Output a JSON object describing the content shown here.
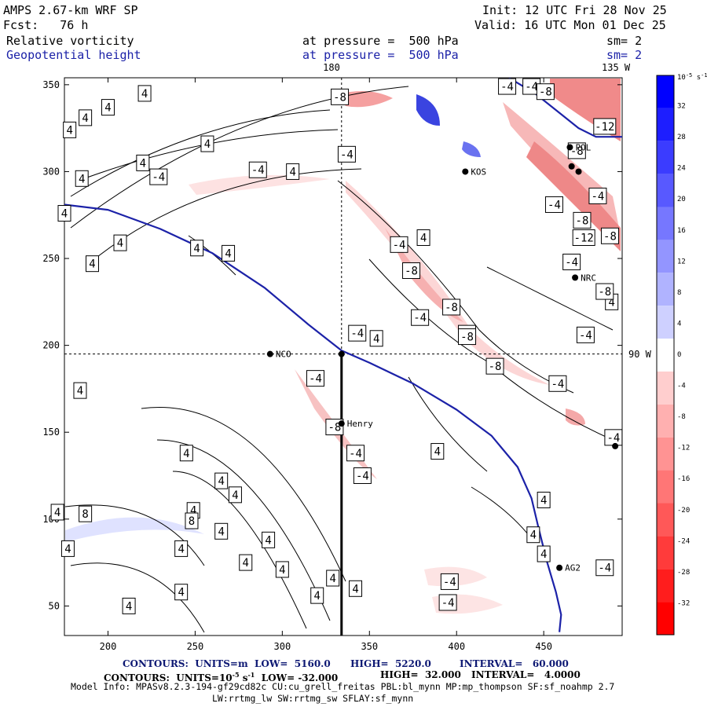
{
  "header": {
    "model": "AMPS 2.67-km WRF SP",
    "init": "Init: 12 UTC Fri 28 Nov 25",
    "fcst": "Fcst:   76 h",
    "valid": "Valid: 16 UTC Mon 01 Dec 25",
    "field1": "Relative vorticity",
    "field1_level": "at pressure =  500 hPa",
    "field1_sm": "sm= 2",
    "field2": "Geopotential height",
    "field2_level": "at pressure =  500 hPa",
    "field2_sm": "sm= 2",
    "lon_180": "180",
    "lon_135": "135 W",
    "lon_90": "90 W"
  },
  "colors": {
    "contour_blue": "#1c22a8",
    "pos_max": "#0000ff",
    "neg_max": "#ff0000"
  },
  "chart_data": {
    "type": "contour",
    "title": "Relative vorticity / Geopotential height at 500 hPa",
    "xlim": [
      175,
      495
    ],
    "ylim": [
      33,
      354
    ],
    "x_ticks": [
      200,
      250,
      300,
      350,
      400,
      450
    ],
    "y_ticks": [
      50,
      100,
      150,
      200,
      250,
      300,
      350
    ],
    "grid_crosshair": {
      "x": 334,
      "y": 195
    },
    "cross_section_x": 334,
    "colorbar": {
      "unit": "10⁻⁵ s⁻¹",
      "unit_label": "10",
      "unit_exp": "-5",
      "unit_tail": " s",
      "unit_exp2": "-1",
      "levels": [
        32,
        28,
        24,
        20,
        16,
        12,
        8,
        4,
        0,
        -4,
        -8,
        -12,
        -16,
        -20,
        -24,
        -28,
        -32
      ],
      "level_labels": [
        "32",
        "28",
        "24",
        "20",
        "16",
        "12",
        "8",
        "4",
        "0",
        "-4",
        "-8",
        "-12",
        "-16",
        "-20",
        "-24",
        "-28",
        "-32"
      ]
    },
    "stations": [
      {
        "name": "NCO",
        "x": 293,
        "y": 195
      },
      {
        "name": "Henry",
        "x": 334,
        "y": 155
      },
      {
        "name": "AG2",
        "x": 459,
        "y": 72
      },
      {
        "name": "NRC",
        "x": 468,
        "y": 239
      },
      {
        "name": "POL",
        "x": 465,
        "y": 314
      },
      {
        "name": "KOS",
        "x": 405,
        "y": 300
      },
      {
        "name": "",
        "x": 334,
        "y": 195
      },
      {
        "name": "",
        "x": 491,
        "y": 142
      },
      {
        "name": "",
        "x": 466,
        "y": 303
      },
      {
        "name": "",
        "x": 470,
        "y": 300
      }
    ],
    "height_contour": [
      [
        175,
        281
      ],
      [
        200,
        278
      ],
      [
        230,
        267
      ],
      [
        260,
        253
      ],
      [
        290,
        233
      ],
      [
        315,
        212
      ],
      [
        334,
        197
      ],
      [
        350,
        190
      ],
      [
        375,
        178
      ],
      [
        400,
        163
      ],
      [
        420,
        148
      ],
      [
        435,
        130
      ],
      [
        443,
        112
      ],
      [
        447,
        95
      ],
      [
        452,
        75
      ],
      [
        457,
        58
      ],
      [
        460,
        45
      ],
      [
        459,
        35
      ]
    ],
    "height_contour_2": [
      [
        430,
        354
      ],
      [
        445,
        345
      ],
      [
        460,
        333
      ],
      [
        470,
        325
      ],
      [
        480,
        320
      ],
      [
        495,
        320
      ]
    ],
    "contour_labels": [
      {
        "t": "4",
        "x": 221,
        "y": 345
      },
      {
        "t": "4",
        "x": 200,
        "y": 337
      },
      {
        "t": "4",
        "x": 178,
        "y": 324
      },
      {
        "t": "4",
        "x": 187,
        "y": 331
      },
      {
        "t": "4",
        "x": 220,
        "y": 305
      },
      {
        "t": "4",
        "x": 185,
        "y": 296
      },
      {
        "t": "4",
        "x": 257,
        "y": 316
      },
      {
        "t": "4",
        "x": 306,
        "y": 300
      },
      {
        "t": "4",
        "x": 251,
        "y": 256
      },
      {
        "t": "4",
        "x": 175,
        "y": 276
      },
      {
        "t": "4",
        "x": 207,
        "y": 259
      },
      {
        "t": "4",
        "x": 269,
        "y": 253
      },
      {
        "t": "4",
        "x": 191,
        "y": 247
      },
      {
        "t": "4",
        "x": 381,
        "y": 262
      },
      {
        "t": "4",
        "x": 489,
        "y": 225
      },
      {
        "t": "4",
        "x": 354,
        "y": 204
      },
      {
        "t": "4",
        "x": 184,
        "y": 174
      },
      {
        "t": "4",
        "x": 245,
        "y": 138
      },
      {
        "t": "4",
        "x": 265,
        "y": 122
      },
      {
        "t": "4",
        "x": 273,
        "y": 114
      },
      {
        "t": "4",
        "x": 249,
        "y": 105
      },
      {
        "t": "4",
        "x": 389,
        "y": 139
      },
      {
        "t": "4",
        "x": 265,
        "y": 93
      },
      {
        "t": "4",
        "x": 242,
        "y": 83
      },
      {
        "t": "4",
        "x": 292,
        "y": 88
      },
      {
        "t": "4",
        "x": 279,
        "y": 75
      },
      {
        "t": "4",
        "x": 300,
        "y": 71
      },
      {
        "t": "4",
        "x": 329,
        "y": 66
      },
      {
        "t": "4",
        "x": 320,
        "y": 56
      },
      {
        "t": "4",
        "x": 242,
        "y": 58
      },
      {
        "t": "4",
        "x": 212,
        "y": 50
      },
      {
        "t": "4",
        "x": 177,
        "y": 83
      },
      {
        "t": "4",
        "x": 450,
        "y": 111
      },
      {
        "t": "4",
        "x": 450,
        "y": 80
      },
      {
        "t": "4",
        "x": 444,
        "y": 91
      },
      {
        "t": "4",
        "x": 171,
        "y": 104
      },
      {
        "t": "8",
        "x": 187,
        "y": 103
      },
      {
        "t": "8",
        "x": 248,
        "y": 99
      },
      {
        "t": "4",
        "x": 342,
        "y": 60
      },
      {
        "t": "-4",
        "x": 406,
        "y": 207
      },
      {
        "t": "-4",
        "x": 458,
        "y": 178
      },
      {
        "t": "-8",
        "x": 406,
        "y": 205
      },
      {
        "t": "-8",
        "x": 397,
        "y": 222
      },
      {
        "t": "-8",
        "x": 422,
        "y": 188
      },
      {
        "t": "-4",
        "x": 379,
        "y": 216
      },
      {
        "t": "-8",
        "x": 374,
        "y": 243
      },
      {
        "t": "-4",
        "x": 367,
        "y": 258
      },
      {
        "t": "-4",
        "x": 337,
        "y": 310
      },
      {
        "t": "-4",
        "x": 286,
        "y": 301
      },
      {
        "t": "-4",
        "x": 229,
        "y": 297
      },
      {
        "t": "-4",
        "x": 319,
        "y": 181
      },
      {
        "t": "-8",
        "x": 330,
        "y": 153
      },
      {
        "t": "-4",
        "x": 342,
        "y": 138
      },
      {
        "t": "-4",
        "x": 346,
        "y": 125
      },
      {
        "t": "-4",
        "x": 343,
        "y": 207
      },
      {
        "t": "-4",
        "x": 396,
        "y": 64
      },
      {
        "t": "-4",
        "x": 395,
        "y": 52
      },
      {
        "t": "-8",
        "x": 333,
        "y": 343
      },
      {
        "t": "-4",
        "x": 429,
        "y": 349
      },
      {
        "t": "-4",
        "x": 490,
        "y": 147
      },
      {
        "t": "-4",
        "x": 485,
        "y": 72
      },
      {
        "t": "-12",
        "x": 485,
        "y": 326
      },
      {
        "t": "-8",
        "x": 472,
        "y": 272
      },
      {
        "t": "-12",
        "x": 473,
        "y": 262
      },
      {
        "t": "-4",
        "x": 481,
        "y": 286
      },
      {
        "t": "-4",
        "x": 466,
        "y": 248
      },
      {
        "t": "-8",
        "x": 485,
        "y": 231
      },
      {
        "t": "-4",
        "x": 456,
        "y": 281
      },
      {
        "t": "-8",
        "x": 469,
        "y": 312
      },
      {
        "t": "-8",
        "x": 488,
        "y": 263
      },
      {
        "t": "-4",
        "x": 443,
        "y": 349
      },
      {
        "t": "-8",
        "x": 451,
        "y": 346
      },
      {
        "t": "-4",
        "x": 474,
        "y": 206
      }
    ]
  },
  "footer": {
    "line1_a": "CONTOURS:  UNITS=m  LOW=  5160.0",
    "line1_b": "HIGH=  5220.0",
    "line1_c": "INTERVAL=   60.000",
    "line2_a": "CONTOURS:  UNITS=10",
    "line2_exp": "-5",
    "line2_s": " s",
    "line2_exp2": "-1",
    "line2_b": "  LOW= -32.000",
    "line2_c": "HIGH=  32.000",
    "line2_d": "INTERVAL=   4.0000",
    "model_info": "Model Info: MPASv8.2.3-194-gf29cd82c CU:cu_grell_freitas PBL:bl_mynn MP:mp_thompson SF:sf_noahmp 2.7",
    "model_info2": "LW:rrtmg_lw SW:rrtmg_sw SFLAY:sf_mynn"
  }
}
